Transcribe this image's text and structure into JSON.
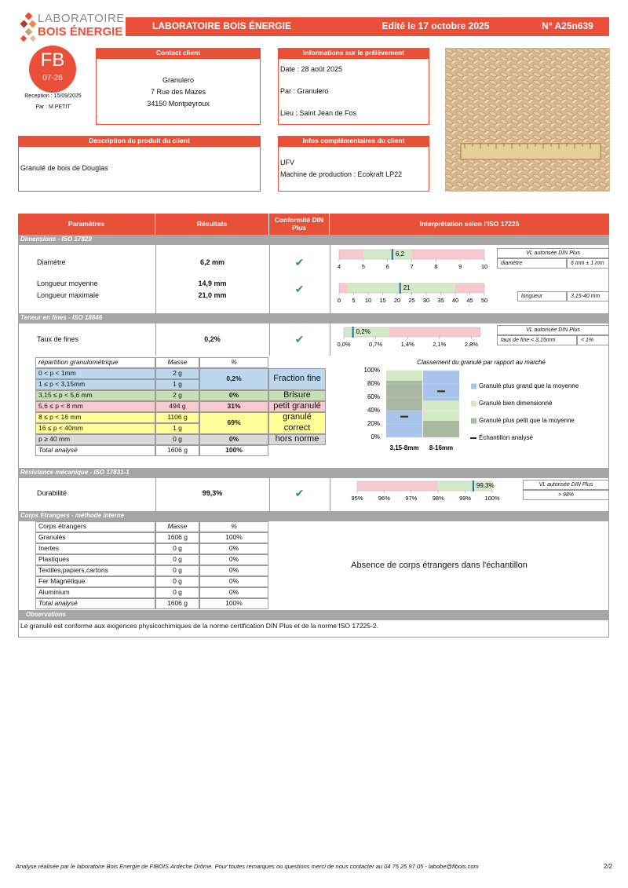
{
  "header": {
    "logo_top": "LABORATOIRE",
    "logo_bottom": "BOIS ÉNERGIE",
    "title": "LABORATOIRE BOIS ÉNERGIE",
    "edited": "Edité le 17 octobre 2025",
    "number": "N° A25n639"
  },
  "stamp": {
    "badge": "FB",
    "badge_date": "07-26",
    "reception": "Reception :  15/09/2025",
    "by": "Par :  M.PETIT"
  },
  "contact": {
    "title": "Contact client",
    "lines": [
      "Granulero",
      "7 Rue des Mazes",
      "34150 Montpeyroux"
    ]
  },
  "sampling": {
    "title": "Informations sur le prélèvement",
    "lines": [
      "Date :  28 août 2025",
      "Par : Granulero",
      "Lieu : Saint Jean de Fos"
    ]
  },
  "product": {
    "title": "Description du produit du client",
    "lines": [
      "Granulé de bois de Douglas"
    ]
  },
  "extra": {
    "title": "Infos complémentaires du client",
    "lines": [
      "UFV",
      "Machine de production : Ecokraft LP22"
    ]
  },
  "results": {
    "headers": [
      "Paramètres",
      "Résultats",
      "Conformité DIN Plus",
      "Interprétation selon l'ISO 17225"
    ],
    "dimensions": {
      "title": "Dimensions - ISO 17829",
      "diameter": {
        "label": "Diamètre",
        "result": "6,2 mm",
        "check": "✔",
        "gauge": {
          "xlim": [
            4,
            10
          ],
          "xticks": [
            4,
            5,
            6,
            7,
            8,
            9,
            10
          ],
          "zones": [
            {
              "from": 4,
              "to": 5,
              "color": "#f8c9cc"
            },
            {
              "from": 5,
              "to": 7,
              "color": "#d4eac7"
            },
            {
              "from": 7,
              "to": 10,
              "color": "#f8c9cc"
            }
          ],
          "value": 6.2,
          "value_label": "6,2",
          "marker_color": "#1f6f9f"
        },
        "limits": {
          "title": "VL autorisée DIN Plus",
          "cells": [
            "diamètre",
            "6 mm ± 1 mm"
          ]
        }
      },
      "length": {
        "labels": [
          "Longueur moyenne",
          "Longueur maximale"
        ],
        "results": [
          "14,9 mm",
          "21,0 mm"
        ],
        "check": "✔",
        "gauge": {
          "xlim": [
            0,
            50
          ],
          "xticks": [
            0,
            5,
            10,
            15,
            20,
            25,
            30,
            35,
            40,
            45,
            50
          ],
          "zones": [
            {
              "from": 0,
              "to": 3.15,
              "color": "#f8c9cc"
            },
            {
              "from": 3.15,
              "to": 40,
              "color": "#d4eac7"
            },
            {
              "from": 40,
              "to": 50,
              "color": "#f8c9cc"
            }
          ],
          "value": 21,
          "marker_color": "#1f6f9f"
        },
        "limits": {
          "cells": [
            "longueur",
            "3.15-40 mm"
          ]
        }
      }
    },
    "fines": {
      "title": "Teneur en fines - ISO 18846",
      "label": "Taux de fines",
      "result": "0,2%",
      "check": "✔",
      "gauge": {
        "xlim": [
          0,
          3
        ],
        "xticks": [
          {
            "value": 0,
            "label": "0,0%"
          },
          {
            "value": 0.7,
            "label": "0,7%"
          },
          {
            "value": 1.4,
            "label": "1,4%"
          },
          {
            "value": 2.1,
            "label": "2,1%"
          },
          {
            "value": 2.8,
            "label": "2,8%"
          }
        ],
        "zones": [
          {
            "from": 0,
            "to": 1,
            "color": "#d4eac7"
          },
          {
            "from": 1,
            "to": 3,
            "color": "#f8c9cc"
          }
        ],
        "value": 0.2,
        "value_label": "0,2%",
        "marker_color": "#1f6f9f"
      },
      "limits": {
        "title": "VL autorisée DIN Plus",
        "cells": [
          "taux de fine < 3,15mm",
          "< 1%"
        ]
      },
      "distribution": {
        "headers": [
          "répartition granulométrique",
          "Masse",
          "%"
        ],
        "groups": [
          {
            "rows": [
              [
                "0 <  p < 1mm",
                "2 g"
              ],
              [
                "1 ≤  p < 3,15mm",
                "1 g"
              ]
            ],
            "percent": "0,2%",
            "class": "Fraction fine",
            "color": "#bdd7ee"
          },
          {
            "rows": [
              [
                "3,15 ≤  p < 5,6 mm",
                "2 g"
              ]
            ],
            "percent": "0%",
            "class": "Brisure",
            "color": "#c6e0b4"
          },
          {
            "rows": [
              [
                "5,6 ≤  p < 8 mm",
                "494 g"
              ]
            ],
            "percent": "31%",
            "class": "petit granulé",
            "color": "#f8cbcf"
          },
          {
            "rows": [
              [
                "8 ≤  p < 16 mm",
                "1106 g"
              ],
              [
                "16 ≤  p < 40mm",
                "1 g"
              ]
            ],
            "percent": "69%",
            "class": "granulé correct",
            "color": "#ffff99"
          },
          {
            "rows": [
              [
                "p ≥ 40 mm",
                "0 g"
              ]
            ],
            "percent": "0%",
            "class": "hors norme",
            "color": "#d9d9d9"
          }
        ],
        "total": [
          "Total analysé",
          "1606 g",
          "100%"
        ]
      },
      "chart": {
        "type": "stacked_bar",
        "title": "Classement du granulé par rapport au marché",
        "ylim": [
          0,
          100
        ],
        "yticks": [
          {
            "value": 0,
            "label": "0%"
          },
          {
            "value": 20,
            "label": "20%"
          },
          {
            "value": 40,
            "label": "40%"
          },
          {
            "value": 60,
            "label": "60%"
          },
          {
            "value": 80,
            "label": "80%"
          },
          {
            "value": 100,
            "label": "100%"
          }
        ],
        "legend": [
          {
            "name": "Granulé plus grand que la moyenne",
            "color": "#a9c4eb"
          },
          {
            "name": "Granulé bien dimensionné",
            "color": "#d4eac7"
          },
          {
            "name": "Granulé plus petit que la moyenne",
            "color": "#a9b8a0"
          }
        ],
        "stacks": [
          {
            "category": "3,15-8mm",
            "segments": [
              {
                "value": 40,
                "color": "#a9c4eb"
              },
              {
                "value": 45,
                "color": "#a9b8a0"
              },
              {
                "value": 15,
                "color": "#d4eac7"
              }
            ],
            "sample": 31
          },
          {
            "category": "8-16mm",
            "segments": [
              {
                "value": 25,
                "color": "#a9b8a0"
              },
              {
                "value": 30,
                "color": "#d4eac7"
              },
              {
                "value": 45,
                "color": "#a9c4eb"
              }
            ],
            "sample": 69
          }
        ],
        "sample_name": "Échantillon analysé",
        "sample_color": "#3a2a00"
      }
    },
    "mechanical": {
      "title": "Résistance mécanique - ISO 17831-1",
      "label": "Durabilité",
      "result": "99,3%",
      "check": "✔",
      "gauge": {
        "xlim": [
          95,
          100
        ],
        "xticks": [
          {
            "value": 95,
            "label": "95%"
          },
          {
            "value": 96,
            "label": "96%"
          },
          {
            "value": 97,
            "label": "97%"
          },
          {
            "value": 98,
            "label": "98%"
          },
          {
            "value": 99,
            "label": "99%"
          },
          {
            "value": 100,
            "label": "100%"
          }
        ],
        "zones": [
          {
            "from": 95,
            "to": 98,
            "color": "#f8c9cc"
          },
          {
            "from": 98,
            "to": 100,
            "color": "#d4eac7"
          }
        ],
        "value": 99.3,
        "value_label": "99,3%",
        "marker_color": "#1f6f9f"
      },
      "limits": {
        "title": "VL autorisée DIN Plus",
        "cells": [
          "> 98%"
        ]
      }
    },
    "foreign": {
      "title": "Corps Etrangers - méthode interne",
      "headers": [
        "Corps étrangers",
        "Masse",
        "%"
      ],
      "rows": [
        [
          "Granulés",
          "1606 g",
          "100%"
        ],
        [
          "Inertes",
          "0 g",
          "0%"
        ],
        [
          "Plastiques",
          "0 g",
          "0%"
        ],
        [
          "Textiles,papiers,cartons",
          "0 g",
          "0%"
        ],
        [
          "Fer Magnétique",
          "0 g",
          "0%"
        ],
        [
          "Aluminium",
          "0 g",
          "0%"
        ]
      ],
      "total": [
        "Total analysé",
        "1606 g",
        "100%"
      ],
      "message": "Absence de corps étrangers dans l'échantillon"
    },
    "observations": {
      "title": "Observations",
      "text": "Le granulé est conforme aux exigences physicochimiques de la norme certification DIN Plus et de la norme ISO 17225-2."
    }
  },
  "footer": {
    "text": "Analyse réalisée par le laboratoire Bois Energie de FIBOIS Ardèche Drôme. Pour toutes remarques ou questions merci de nous contacter au 04 75 25 97 05 - labobe@fibois.com",
    "page": "2/2"
  }
}
